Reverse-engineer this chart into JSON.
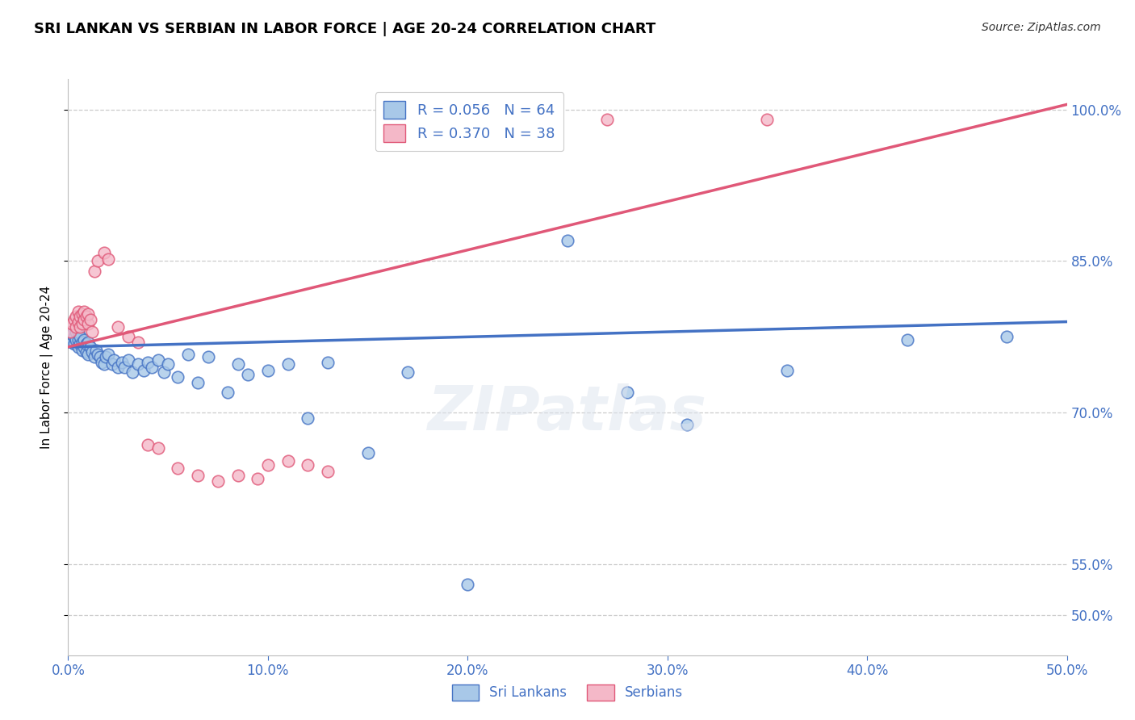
{
  "title": "SRI LANKAN VS SERBIAN IN LABOR FORCE | AGE 20-24 CORRELATION CHART",
  "source": "Source: ZipAtlas.com",
  "ylabel": "In Labor Force | Age 20-24",
  "xlim": [
    0.0,
    0.5
  ],
  "ylim": [
    0.46,
    1.03
  ],
  "xtick_labels": [
    "0.0%",
    "10.0%",
    "20.0%",
    "30.0%",
    "40.0%",
    "50.0%"
  ],
  "xtick_values": [
    0.0,
    0.1,
    0.2,
    0.3,
    0.4,
    0.5
  ],
  "ytick_labels": [
    "50.0%",
    "55.0%",
    "70.0%",
    "85.0%",
    "100.0%"
  ],
  "ytick_values": [
    0.5,
    0.55,
    0.7,
    0.85,
    1.0
  ],
  "sri_lankans_R": 0.056,
  "sri_lankans_N": 64,
  "serbians_R": 0.37,
  "serbians_N": 38,
  "sri_lankans_color": "#a8c8e8",
  "serbians_color": "#f4b8c8",
  "trend_sri_lankans_color": "#4472c4",
  "trend_serbians_color": "#e05878",
  "background_color": "#ffffff",
  "sri_lankans_x": [
    0.001,
    0.002,
    0.002,
    0.003,
    0.003,
    0.004,
    0.004,
    0.005,
    0.005,
    0.005,
    0.006,
    0.006,
    0.007,
    0.007,
    0.008,
    0.008,
    0.009,
    0.009,
    0.01,
    0.01,
    0.011,
    0.012,
    0.013,
    0.014,
    0.015,
    0.016,
    0.017,
    0.018,
    0.019,
    0.02,
    0.022,
    0.023,
    0.025,
    0.027,
    0.028,
    0.03,
    0.032,
    0.035,
    0.038,
    0.04,
    0.042,
    0.045,
    0.048,
    0.05,
    0.055,
    0.06,
    0.065,
    0.07,
    0.08,
    0.085,
    0.09,
    0.1,
    0.11,
    0.12,
    0.13,
    0.15,
    0.17,
    0.2,
    0.25,
    0.28,
    0.31,
    0.36,
    0.42,
    0.47
  ],
  "sri_lankans_y": [
    0.775,
    0.77,
    0.778,
    0.768,
    0.775,
    0.772,
    0.78,
    0.765,
    0.772,
    0.78,
    0.768,
    0.775,
    0.762,
    0.77,
    0.765,
    0.772,
    0.76,
    0.768,
    0.758,
    0.77,
    0.765,
    0.76,
    0.755,
    0.762,
    0.758,
    0.755,
    0.75,
    0.748,
    0.755,
    0.758,
    0.748,
    0.752,
    0.745,
    0.75,
    0.745,
    0.752,
    0.74,
    0.748,
    0.742,
    0.75,
    0.745,
    0.752,
    0.74,
    0.748,
    0.735,
    0.758,
    0.73,
    0.755,
    0.72,
    0.748,
    0.738,
    0.742,
    0.748,
    0.695,
    0.75,
    0.66,
    0.74,
    0.53,
    0.87,
    0.72,
    0.688,
    0.742,
    0.772,
    0.775
  ],
  "serbians_x": [
    0.001,
    0.002,
    0.003,
    0.004,
    0.004,
    0.005,
    0.005,
    0.006,
    0.006,
    0.007,
    0.007,
    0.008,
    0.008,
    0.009,
    0.01,
    0.01,
    0.011,
    0.012,
    0.013,
    0.015,
    0.018,
    0.02,
    0.025,
    0.03,
    0.035,
    0.04,
    0.045,
    0.055,
    0.065,
    0.075,
    0.085,
    0.095,
    0.1,
    0.11,
    0.12,
    0.13,
    0.27,
    0.35
  ],
  "serbians_y": [
    0.78,
    0.788,
    0.792,
    0.785,
    0.795,
    0.79,
    0.8,
    0.785,
    0.795,
    0.788,
    0.798,
    0.792,
    0.8,
    0.795,
    0.788,
    0.798,
    0.792,
    0.78,
    0.84,
    0.85,
    0.858,
    0.852,
    0.785,
    0.775,
    0.77,
    0.668,
    0.665,
    0.645,
    0.638,
    0.632,
    0.638,
    0.635,
    0.648,
    0.652,
    0.648,
    0.642,
    0.99,
    0.99
  ],
  "trend_sl_x0": 0.0,
  "trend_sl_x1": 0.5,
  "trend_sl_y0": 0.765,
  "trend_sl_y1": 0.79,
  "trend_se_x0": 0.0,
  "trend_se_x1": 0.5,
  "trend_se_y0": 0.765,
  "trend_se_y1": 1.005
}
